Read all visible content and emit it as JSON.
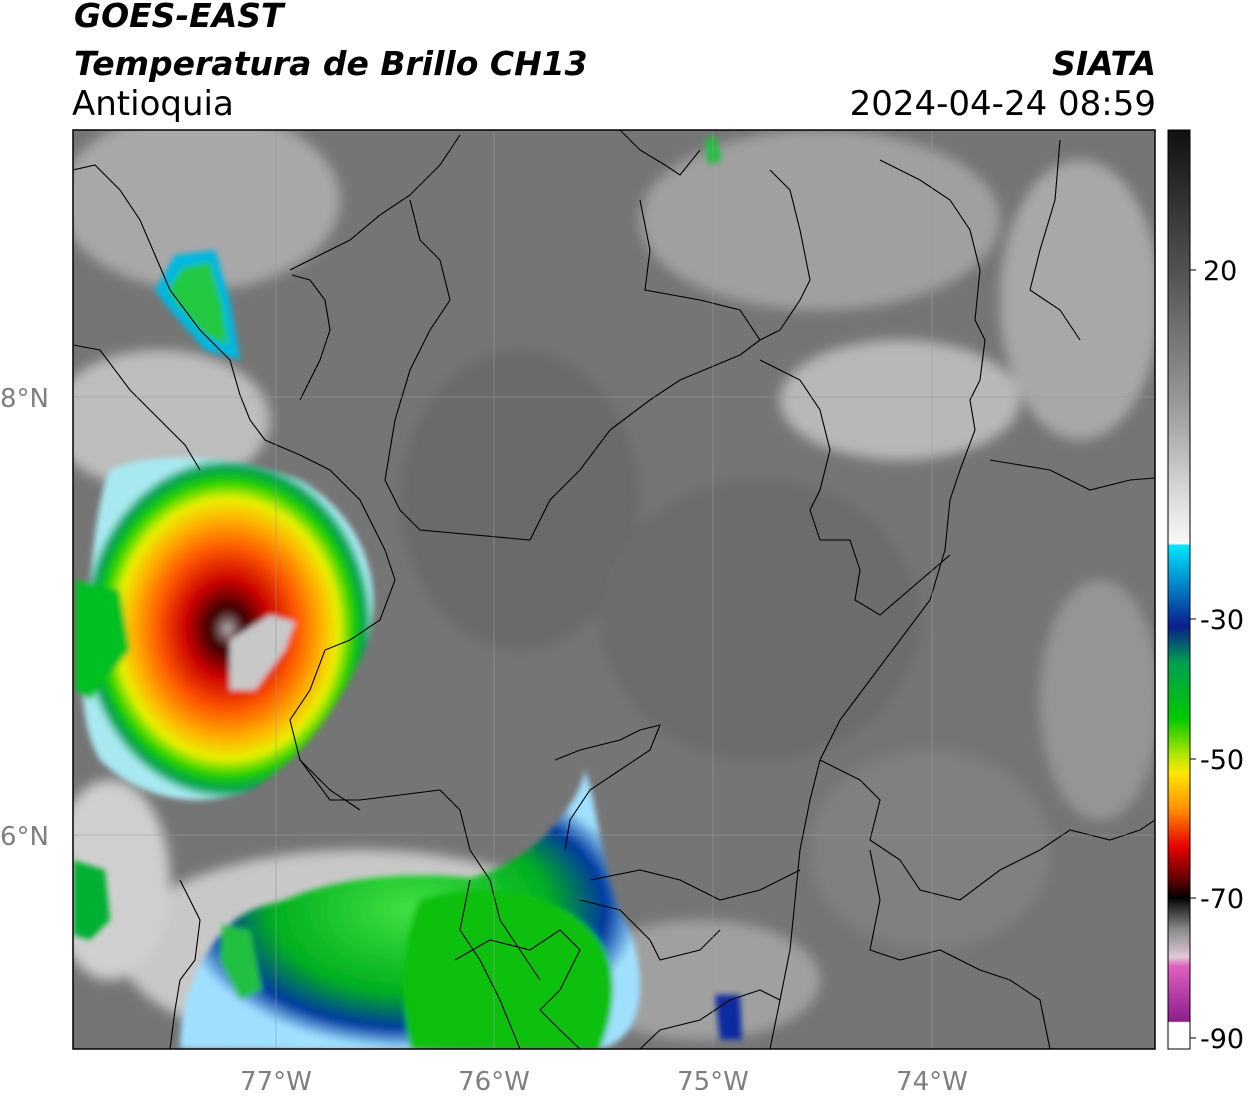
{
  "header": {
    "satellite": "GOES-EAST",
    "product": "Temperatura de Brillo CH13",
    "region": "Antioquia",
    "agency": "SIATA",
    "datetime": "2024-04-24 08:59"
  },
  "map": {
    "lon_ticks": [
      "77°W",
      "76°W",
      "75°W",
      "74°W"
    ],
    "lat_ticks": [
      "8°N",
      "6°N"
    ],
    "background_gray": "#777777",
    "border_color": "#000000"
  },
  "colorbar": {
    "tick_labels": [
      "20",
      "-30",
      "-50",
      "-70",
      "-90"
    ],
    "colors": {
      "warm_black": "#111111",
      "gray": "#808080",
      "light": "#f5f5f5",
      "cyan": "#00e5ff",
      "blue": "#0a1e8c",
      "green": "#00c800",
      "yellow": "#ffe600",
      "orange": "#ff8c00",
      "red": "#e60000",
      "dark_red": "#500000",
      "black": "#000000",
      "pink": "#e060c0",
      "purple": "#8c1e8c"
    }
  }
}
